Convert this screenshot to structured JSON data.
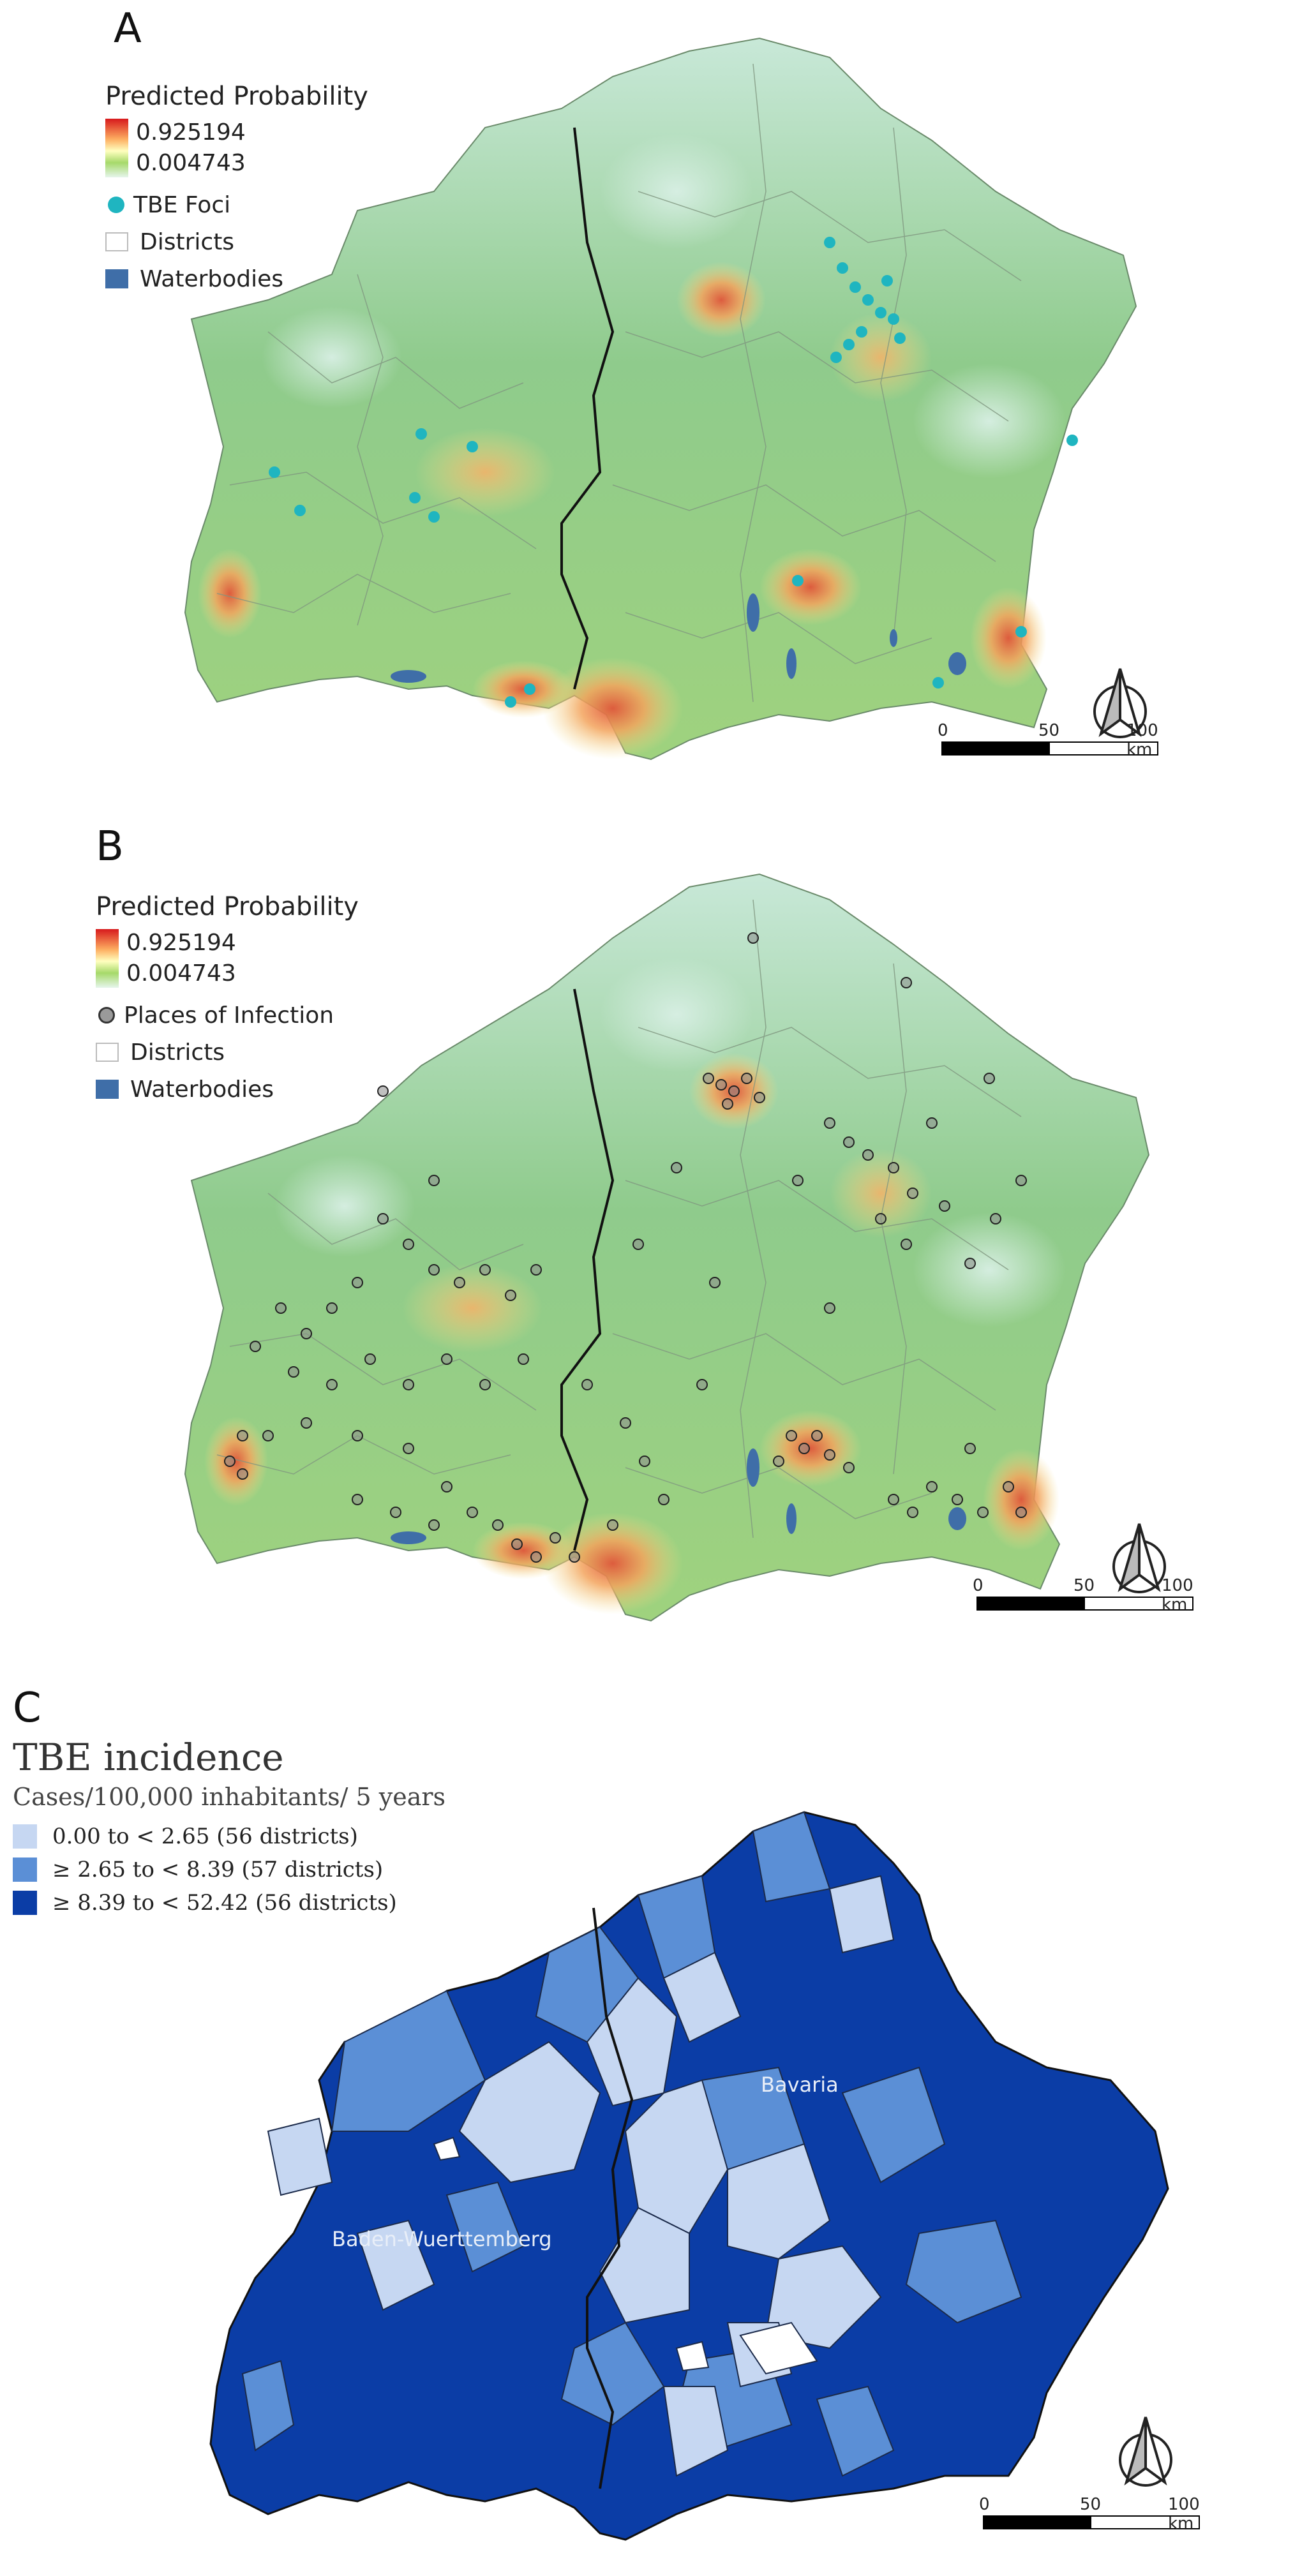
{
  "panel_a": {
    "letter": "A",
    "legend": {
      "title": "Predicted Probability",
      "max_value": "0.925194",
      "min_value": "0.004743",
      "points_label": "TBE Foci",
      "districts_label": "Districts",
      "waterbodies_label": "Waterbodies"
    },
    "scalebar": {
      "label_0": "0",
      "label_50": "50",
      "label_100": "100 km"
    },
    "colors": {
      "points": "#1fb5c0",
      "ramp_high": "#d7191c",
      "ramp_low": "#e6f5ec",
      "water": "#3f6ea8"
    }
  },
  "panel_b": {
    "letter": "B",
    "legend": {
      "title": "Predicted Probability",
      "max_value": "0.925194",
      "min_value": "0.004743",
      "points_label": "Places of Infection",
      "districts_label": "Districts",
      "waterbodies_label": "Waterbodies"
    },
    "scalebar": {
      "label_0": "0",
      "label_50": "50",
      "label_100": "100 km"
    },
    "colors": {
      "points": "#555555"
    }
  },
  "panel_c": {
    "letter": "C",
    "legend": {
      "title": "TBE incidence",
      "subtitle": "Cases/100,000 inhabitants/ 5 years",
      "classes": [
        {
          "label": "0.00 to < 2.65 (56 districts)",
          "color": "#c6d7f2"
        },
        {
          "label": "≥ 2.65  to < 8.39 (57 districts)",
          "color": "#5b8fd6"
        },
        {
          "label": "≥ 8.39 to < 52.42 (56 districts)",
          "color": "#0b3da6"
        }
      ]
    },
    "labels": {
      "bavaria": "Bavaria",
      "bw": "Baden-Wuerttemberg"
    },
    "scalebar": {
      "label_0": "0",
      "label_50": "50",
      "label_100": "100 km"
    }
  }
}
